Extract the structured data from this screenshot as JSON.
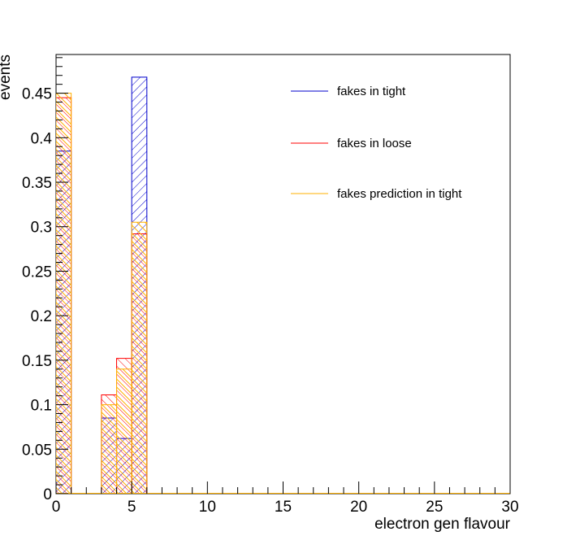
{
  "chart_data": {
    "type": "histogram",
    "title": "",
    "xlabel": "electron gen flavour",
    "ylabel": "events",
    "xlim": [
      0,
      30
    ],
    "ylim": [
      0,
      0.4935
    ],
    "bin_width": 1,
    "x_ticks": [
      0,
      5,
      10,
      15,
      20,
      25,
      30
    ],
    "x_tick_labels": [
      "0",
      "5",
      "10",
      "15",
      "20",
      "25",
      "30"
    ],
    "y_ticks": [
      0,
      0.05,
      0.1,
      0.15,
      0.2,
      0.25,
      0.3,
      0.35,
      0.4,
      0.45
    ],
    "y_tick_labels": [
      "0",
      "0.05",
      "0.1",
      "0.15",
      "0.2",
      "0.25",
      "0.3",
      "0.35",
      "0.4",
      "0.45"
    ],
    "legend_position": "top-right",
    "series": [
      {
        "name": "fakes in tight",
        "color": "#0000cc",
        "hatch": "diagonal-down",
        "bins": [
          {
            "x0": 0,
            "x1": 1,
            "value": 0.385
          },
          {
            "x0": 3,
            "x1": 4,
            "value": 0.085
          },
          {
            "x0": 4,
            "x1": 5,
            "value": 0.062
          },
          {
            "x0": 5,
            "x1": 6,
            "value": 0.468
          }
        ]
      },
      {
        "name": "fakes in loose",
        "color": "#ff0000",
        "hatch": "diagonal-up",
        "bins": [
          {
            "x0": 0,
            "x1": 1,
            "value": 0.445
          },
          {
            "x0": 3,
            "x1": 4,
            "value": 0.111
          },
          {
            "x0": 4,
            "x1": 5,
            "value": 0.152
          },
          {
            "x0": 5,
            "x1": 6,
            "value": 0.292
          }
        ]
      },
      {
        "name": "fakes prediction in tight",
        "color": "#ffb000",
        "hatch": "diagonal-up",
        "bins": [
          {
            "x0": 0,
            "x1": 1,
            "value": 0.45
          },
          {
            "x0": 3,
            "x1": 4,
            "value": 0.1
          },
          {
            "x0": 4,
            "x1": 5,
            "value": 0.14
          },
          {
            "x0": 5,
            "x1": 6,
            "value": 0.305
          }
        ]
      }
    ]
  }
}
